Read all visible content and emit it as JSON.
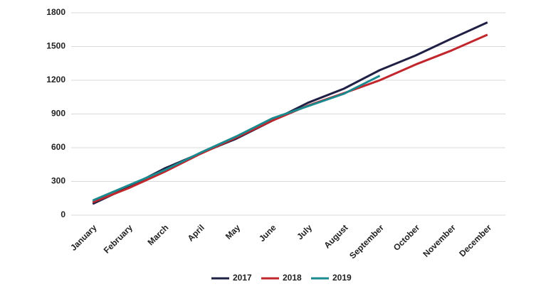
{
  "chart_data": {
    "type": "line",
    "categories": [
      "January",
      "February",
      "March",
      "April",
      "May",
      "June",
      "July",
      "August",
      "September",
      "October",
      "November",
      "December"
    ],
    "series": [
      {
        "name": "2017",
        "color": "#1f2044",
        "values": [
          100,
          250,
          415,
          550,
          680,
          840,
          1000,
          1125,
          1290,
          1420,
          1570,
          1715
        ]
      },
      {
        "name": "2018",
        "color": "#c0262c",
        "values": [
          115,
          240,
          385,
          545,
          690,
          840,
          975,
          1085,
          1200,
          1340,
          1465,
          1605
        ]
      },
      {
        "name": "2019",
        "color": "#1b8a8f",
        "values": [
          130,
          265,
          400,
          555,
          700,
          860,
          970,
          1080,
          1240,
          null,
          null,
          null
        ]
      }
    ],
    "ylim": [
      0,
      1800
    ],
    "yticks": [
      0,
      300,
      600,
      900,
      1200,
      1500,
      1800
    ],
    "grid": true,
    "legend": "bottom"
  }
}
